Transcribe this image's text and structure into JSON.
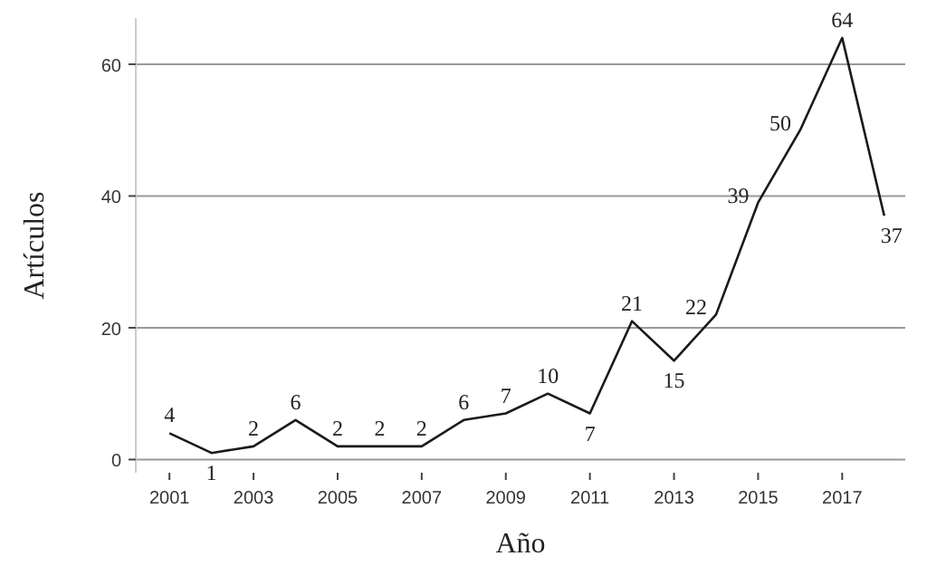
{
  "chart_data": {
    "type": "line",
    "xlabel": "Año",
    "ylabel": "Artículos",
    "x": [
      2001,
      2002,
      2003,
      2004,
      2005,
      2006,
      2007,
      2008,
      2009,
      2010,
      2011,
      2012,
      2013,
      2014,
      2015,
      2016,
      2017,
      2018
    ],
    "series": [
      {
        "color": "#1a1a1a",
        "values": [
          4,
          1,
          2,
          6,
          2,
          2,
          2,
          6,
          7,
          10,
          7,
          21,
          15,
          22,
          39,
          50,
          64,
          37
        ]
      }
    ],
    "xlim": [
      2000.2,
      2018.5
    ],
    "xticks": [
      2001,
      2003,
      2005,
      2007,
      2009,
      2011,
      2013,
      2015,
      2017
    ],
    "ylim": [
      -2,
      67
    ],
    "yticks": [
      0,
      20,
      40,
      60
    ],
    "grid": "y",
    "data_labels": true,
    "marker": "none",
    "line_style": "solid"
  }
}
